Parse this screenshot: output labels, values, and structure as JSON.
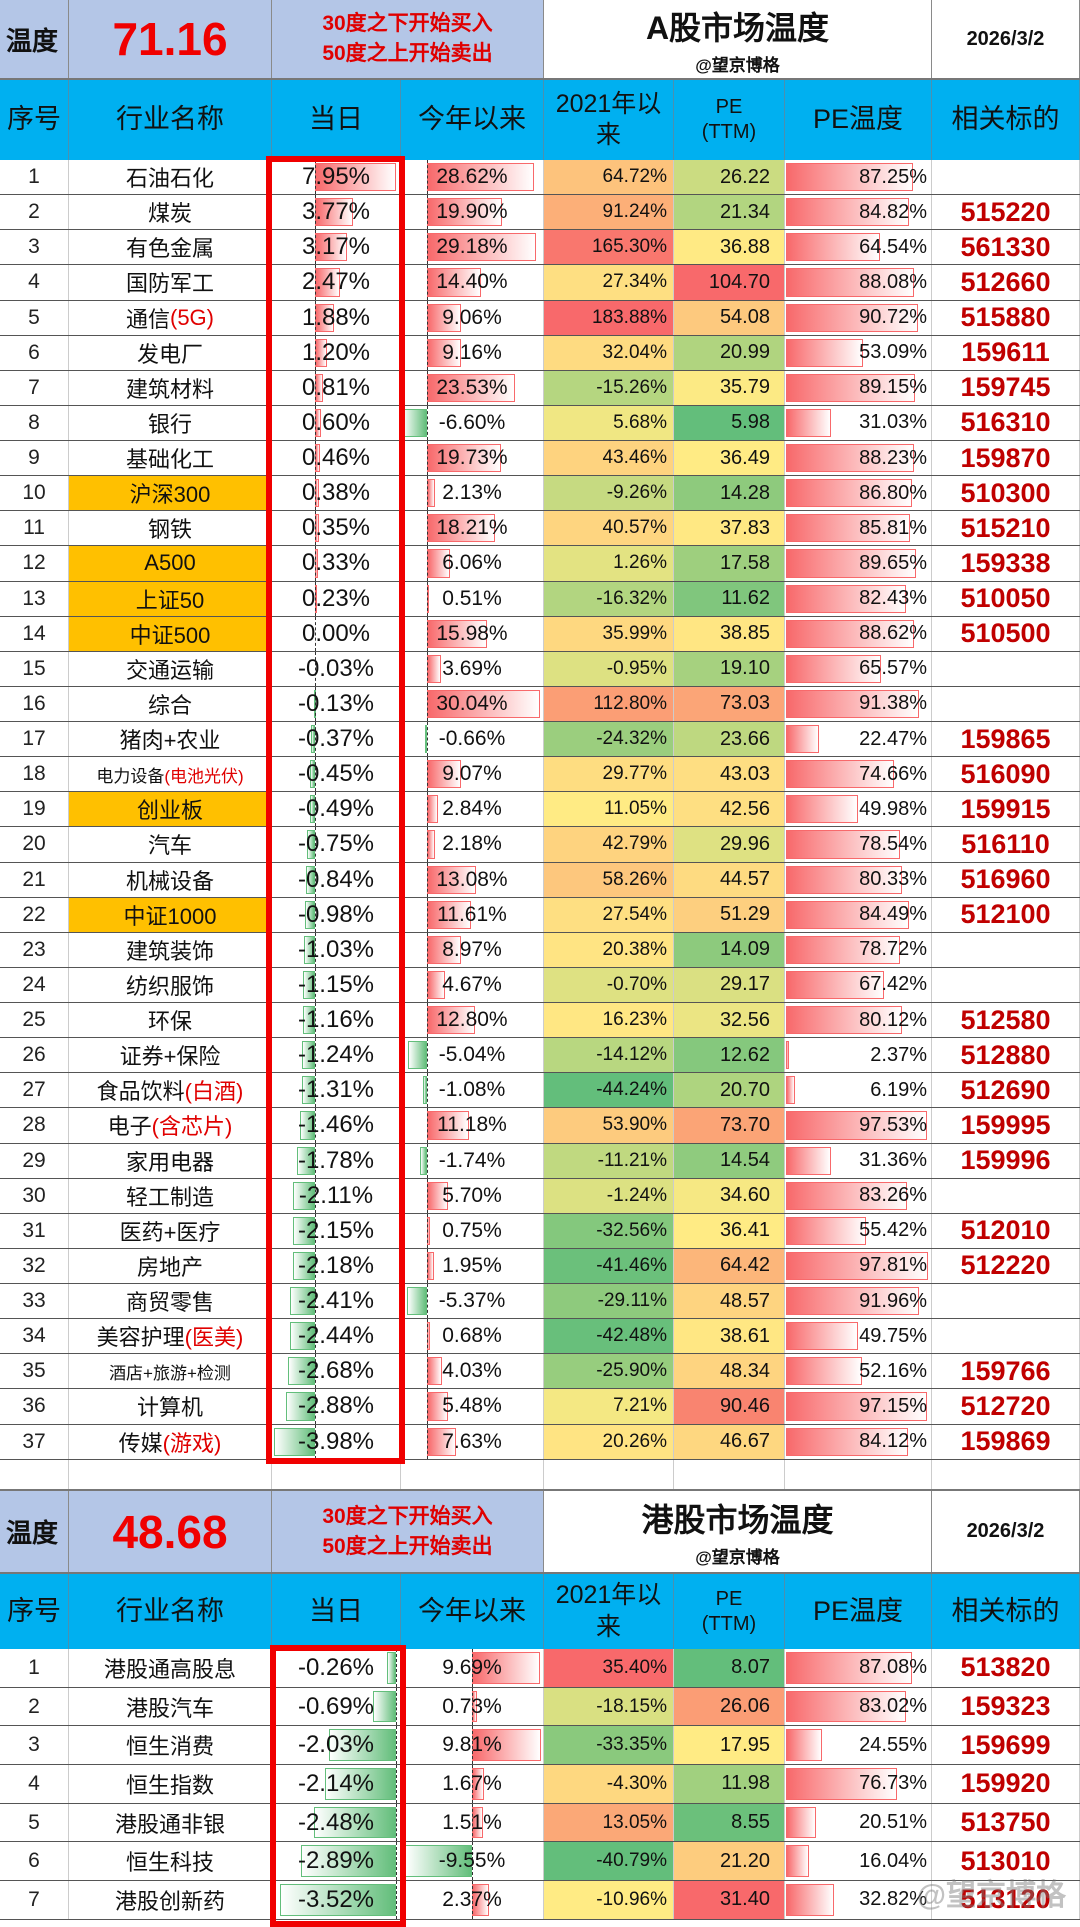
{
  "colors": {
    "accent_header": "#00B0F0",
    "band": "#B4C6E7",
    "index_highlight": "#FFC000",
    "red": "#F00000",
    "code_red": "#C00000",
    "scale_low": "#63BE7B",
    "scale_mid": "#FFEB84",
    "scale_high": "#F8696B",
    "bar_pos": "#F8696B",
    "bar_neg": "#63BE7B"
  },
  "headers": {
    "no": "序号",
    "name": "行业名称",
    "today": "当日",
    "ytd": "今年以来",
    "since2021": "2021年以\n来",
    "pe": "PE\n(TTM)",
    "pe_temp": "PE温度",
    "code": "相关标的"
  },
  "a_share": {
    "temp_label": "温度",
    "temp_value": "71.16",
    "tip1": "30度之下开始买入",
    "tip2": "50度之上开始卖出",
    "title": "A股市场温度",
    "author": "@望京博格",
    "date": "2026/3/2",
    "rows": [
      {
        "no": "1",
        "name": "石油石化",
        "note": "",
        "today": "7.95%",
        "ytd": "28.62%",
        "since2021": "64.72%",
        "pe": "26.22",
        "pe_temp": "87.25%",
        "code": ""
      },
      {
        "no": "2",
        "name": "煤炭",
        "note": "",
        "today": "3.77%",
        "ytd": "19.90%",
        "since2021": "91.24%",
        "pe": "21.34",
        "pe_temp": "84.82%",
        "code": "515220"
      },
      {
        "no": "3",
        "name": "有色金属",
        "note": "",
        "today": "3.17%",
        "ytd": "29.18%",
        "since2021": "165.30%",
        "pe": "36.88",
        "pe_temp": "64.54%",
        "code": "561330"
      },
      {
        "no": "4",
        "name": "国防军工",
        "note": "",
        "today": "2.47%",
        "ytd": "14.40%",
        "since2021": "27.34%",
        "pe": "104.70",
        "pe_temp": "88.08%",
        "code": "512660"
      },
      {
        "no": "5",
        "name": "通信",
        "note": "(5G)",
        "today": "1.88%",
        "ytd": "9.06%",
        "since2021": "183.88%",
        "pe": "54.08",
        "pe_temp": "90.72%",
        "code": "515880"
      },
      {
        "no": "6",
        "name": "发电厂",
        "note": "",
        "today": "1.20%",
        "ytd": "9.16%",
        "since2021": "32.04%",
        "pe": "20.99",
        "pe_temp": "53.09%",
        "code": "159611"
      },
      {
        "no": "7",
        "name": "建筑材料",
        "note": "",
        "today": "0.81%",
        "ytd": "23.53%",
        "since2021": "-15.26%",
        "pe": "35.79",
        "pe_temp": "89.15%",
        "code": "159745"
      },
      {
        "no": "8",
        "name": "银行",
        "note": "",
        "today": "0.60%",
        "ytd": "-6.60%",
        "since2021": "5.68%",
        "pe": "5.98",
        "pe_temp": "31.03%",
        "code": "516310"
      },
      {
        "no": "9",
        "name": "基础化工",
        "note": "",
        "today": "0.46%",
        "ytd": "19.73%",
        "since2021": "43.46%",
        "pe": "36.49",
        "pe_temp": "88.23%",
        "code": "159870"
      },
      {
        "no": "10",
        "name": "沪深300",
        "note": "",
        "highlight": true,
        "today": "0.38%",
        "ytd": "2.13%",
        "since2021": "-9.26%",
        "pe": "14.28",
        "pe_temp": "86.80%",
        "code": "510300"
      },
      {
        "no": "11",
        "name": "钢铁",
        "note": "",
        "today": "0.35%",
        "ytd": "18.21%",
        "since2021": "40.57%",
        "pe": "37.83",
        "pe_temp": "85.81%",
        "code": "515210"
      },
      {
        "no": "12",
        "name": "A500",
        "note": "",
        "highlight": true,
        "today": "0.33%",
        "ytd": "6.06%",
        "since2021": "1.26%",
        "pe": "17.58",
        "pe_temp": "89.65%",
        "code": "159338"
      },
      {
        "no": "13",
        "name": "上证50",
        "note": "",
        "highlight": true,
        "today": "0.23%",
        "ytd": "0.51%",
        "since2021": "-16.32%",
        "pe": "11.62",
        "pe_temp": "82.43%",
        "code": "510050"
      },
      {
        "no": "14",
        "name": "中证500",
        "note": "",
        "highlight": true,
        "today": "0.00%",
        "ytd": "15.98%",
        "since2021": "35.99%",
        "pe": "38.85",
        "pe_temp": "88.62%",
        "code": "510500"
      },
      {
        "no": "15",
        "name": "交通运输",
        "note": "",
        "today": "-0.03%",
        "ytd": "3.69%",
        "since2021": "-0.95%",
        "pe": "19.10",
        "pe_temp": "65.57%",
        "code": ""
      },
      {
        "no": "16",
        "name": "综合",
        "note": "",
        "today": "-0.13%",
        "ytd": "30.04%",
        "since2021": "112.80%",
        "pe": "73.03",
        "pe_temp": "91.38%",
        "code": ""
      },
      {
        "no": "17",
        "name": "猪肉+农业",
        "note": "",
        "today": "-0.37%",
        "ytd": "-0.66%",
        "since2021": "-24.32%",
        "pe": "23.66",
        "pe_temp": "22.47%",
        "code": "159865"
      },
      {
        "no": "18",
        "name": "电力设备",
        "note": "(电池光伏)",
        "small": true,
        "today": "-0.45%",
        "ytd": "9.07%",
        "since2021": "29.77%",
        "pe": "43.03",
        "pe_temp": "74.66%",
        "code": "516090"
      },
      {
        "no": "19",
        "name": "创业板",
        "note": "",
        "highlight": true,
        "today": "-0.49%",
        "ytd": "2.84%",
        "since2021": "11.05%",
        "pe": "42.56",
        "pe_temp": "49.98%",
        "code": "159915"
      },
      {
        "no": "20",
        "name": "汽车",
        "note": "",
        "today": "-0.75%",
        "ytd": "2.18%",
        "since2021": "42.79%",
        "pe": "29.96",
        "pe_temp": "78.54%",
        "code": "516110"
      },
      {
        "no": "21",
        "name": "机械设备",
        "note": "",
        "today": "-0.84%",
        "ytd": "13.08%",
        "since2021": "58.26%",
        "pe": "44.57",
        "pe_temp": "80.33%",
        "code": "516960"
      },
      {
        "no": "22",
        "name": "中证1000",
        "note": "",
        "highlight": true,
        "today": "-0.98%",
        "ytd": "11.61%",
        "since2021": "27.54%",
        "pe": "51.29",
        "pe_temp": "84.49%",
        "code": "512100"
      },
      {
        "no": "23",
        "name": "建筑装饰",
        "note": "",
        "today": "-1.03%",
        "ytd": "8.97%",
        "since2021": "20.38%",
        "pe": "14.09",
        "pe_temp": "78.72%",
        "code": ""
      },
      {
        "no": "24",
        "name": "纺织服饰",
        "note": "",
        "today": "-1.15%",
        "ytd": "4.67%",
        "since2021": "-0.70%",
        "pe": "29.17",
        "pe_temp": "67.42%",
        "code": ""
      },
      {
        "no": "25",
        "name": "环保",
        "note": "",
        "today": "-1.16%",
        "ytd": "12.80%",
        "since2021": "16.23%",
        "pe": "32.56",
        "pe_temp": "80.12%",
        "code": "512580"
      },
      {
        "no": "26",
        "name": "证券+保险",
        "note": "",
        "today": "-1.24%",
        "ytd": "-5.04%",
        "since2021": "-14.12%",
        "pe": "12.62",
        "pe_temp": "2.37%",
        "code": "512880"
      },
      {
        "no": "27",
        "name": "食品饮料",
        "note": "(白酒)",
        "today": "-1.31%",
        "ytd": "-1.08%",
        "since2021": "-44.24%",
        "pe": "20.70",
        "pe_temp": "6.19%",
        "code": "512690"
      },
      {
        "no": "28",
        "name": "电子",
        "note": "(含芯片)",
        "today": "-1.46%",
        "ytd": "11.18%",
        "since2021": "53.90%",
        "pe": "73.70",
        "pe_temp": "97.53%",
        "code": "159995"
      },
      {
        "no": "29",
        "name": "家用电器",
        "note": "",
        "today": "-1.78%",
        "ytd": "-1.74%",
        "since2021": "-11.21%",
        "pe": "14.54",
        "pe_temp": "31.36%",
        "code": "159996"
      },
      {
        "no": "30",
        "name": "轻工制造",
        "note": "",
        "today": "-2.11%",
        "ytd": "5.70%",
        "since2021": "-1.24%",
        "pe": "34.60",
        "pe_temp": "83.26%",
        "code": ""
      },
      {
        "no": "31",
        "name": "医药+医疗",
        "note": "",
        "today": "-2.15%",
        "ytd": "0.75%",
        "since2021": "-32.56%",
        "pe": "36.41",
        "pe_temp": "55.42%",
        "code": "512010"
      },
      {
        "no": "32",
        "name": "房地产",
        "note": "",
        "today": "-2.18%",
        "ytd": "1.95%",
        "since2021": "-41.46%",
        "pe": "64.42",
        "pe_temp": "97.81%",
        "code": "512220"
      },
      {
        "no": "33",
        "name": "商贸零售",
        "note": "",
        "today": "-2.41%",
        "ytd": "-5.37%",
        "since2021": "-29.11%",
        "pe": "48.57",
        "pe_temp": "91.96%",
        "code": ""
      },
      {
        "no": "34",
        "name": "美容护理",
        "note": "(医美)",
        "today": "-2.44%",
        "ytd": "0.68%",
        "since2021": "-42.48%",
        "pe": "38.61",
        "pe_temp": "49.75%",
        "code": ""
      },
      {
        "no": "35",
        "name": "酒店+旅游+检测",
        "note": "",
        "small": true,
        "today": "-2.68%",
        "ytd": "4.03%",
        "since2021": "-25.90%",
        "pe": "48.34",
        "pe_temp": "52.16%",
        "code": "159766"
      },
      {
        "no": "36",
        "name": "计算机",
        "note": "",
        "today": "-2.88%",
        "ytd": "5.48%",
        "since2021": "7.21%",
        "pe": "90.46",
        "pe_temp": "97.15%",
        "code": "512720"
      },
      {
        "no": "37",
        "name": "传媒",
        "note": "(游戏)",
        "today": "-3.98%",
        "ytd": "7.63%",
        "since2021": "20.26%",
        "pe": "46.67",
        "pe_temp": "84.12%",
        "code": "159869"
      }
    ]
  },
  "hk_share": {
    "temp_label": "温度",
    "temp_value": "48.68",
    "tip1": "30度之下开始买入",
    "tip2": "50度之上开始卖出",
    "title": "港股市场温度",
    "author": "@望京博格",
    "date": "2026/3/2",
    "rows": [
      {
        "no": "1",
        "name": "港股通高股息",
        "note": "",
        "today": "-0.26%",
        "ytd": "9.69%",
        "since2021": "35.40%",
        "pe": "8.07",
        "pe_temp": "87.08%",
        "code": "513820"
      },
      {
        "no": "2",
        "name": "港股汽车",
        "note": "",
        "today": "-0.69%",
        "ytd": "0.73%",
        "since2021": "-18.15%",
        "pe": "26.06",
        "pe_temp": "83.02%",
        "code": "159323"
      },
      {
        "no": "3",
        "name": "恒生消费",
        "note": "",
        "today": "-2.03%",
        "ytd": "9.81%",
        "since2021": "-33.35%",
        "pe": "17.95",
        "pe_temp": "24.55%",
        "code": "159699"
      },
      {
        "no": "4",
        "name": "恒生指数",
        "note": "",
        "today": "-2.14%",
        "ytd": "1.67%",
        "since2021": "-4.30%",
        "pe": "11.98",
        "pe_temp": "76.73%",
        "code": "159920"
      },
      {
        "no": "5",
        "name": "港股通非银",
        "note": "",
        "today": "-2.48%",
        "ytd": "1.51%",
        "since2021": "13.05%",
        "pe": "8.55",
        "pe_temp": "20.51%",
        "code": "513750"
      },
      {
        "no": "6",
        "name": "恒生科技",
        "note": "",
        "today": "-2.89%",
        "ytd": "-9.55%",
        "since2021": "-40.79%",
        "pe": "21.20",
        "pe_temp": "16.04%",
        "code": "513010"
      },
      {
        "no": "7",
        "name": "港股创新药",
        "note": "",
        "today": "-3.52%",
        "ytd": "2.37%",
        "since2021": "-10.96%",
        "pe": "31.40",
        "pe_temp": "32.82%",
        "code": "513120"
      }
    ]
  },
  "watermark": "@望京博格"
}
